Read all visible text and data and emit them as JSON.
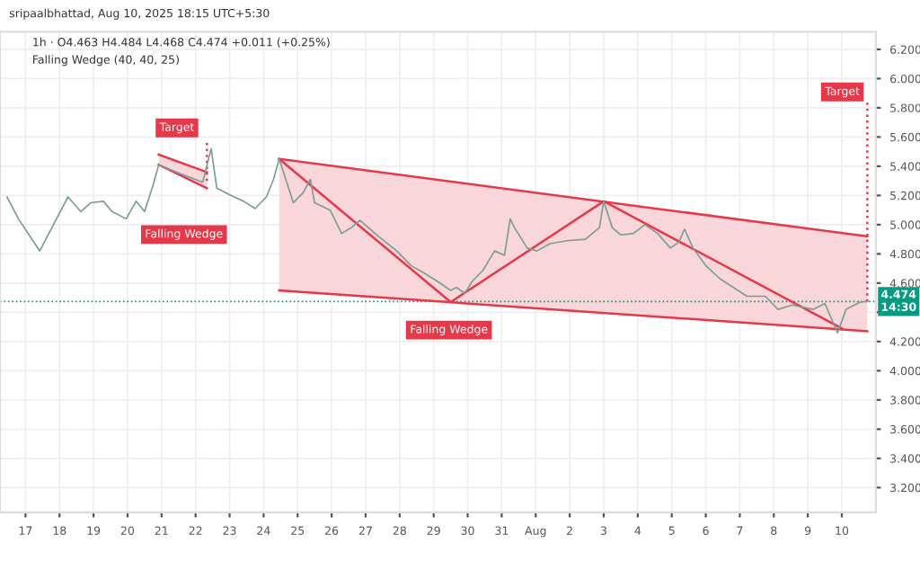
{
  "chart_data": {
    "type": "line",
    "title": "1h · O4.463 H4.484 L4.468 C4.474 +0.011 (+0.25%)",
    "subtitle": "Falling Wedge (40, 40, 25)",
    "annotations": [
      "sripaalbhattad, Aug 10, 2025 18:15 UTC+5:30",
      {
        "text": "Target",
        "x": "2025-07-22T08:00",
        "y": 5.56
      },
      "Falling Wedge",
      "Falling Wedge",
      {
        "text": "Target",
        "x": "2025-08-10T18:00",
        "y": 5.84
      }
    ],
    "xlim": [
      "2025-07-16T06:00",
      "2025-08-11T00:00"
    ],
    "xticks": [
      {
        "value": "2025-07-17",
        "label": "17"
      },
      {
        "value": "2025-07-18",
        "label": "18"
      },
      {
        "value": "2025-07-19",
        "label": "19"
      },
      {
        "value": "2025-07-20",
        "label": "20"
      },
      {
        "value": "2025-07-21",
        "label": "21"
      },
      {
        "value": "2025-07-22",
        "label": "22"
      },
      {
        "value": "2025-07-23",
        "label": "23"
      },
      {
        "value": "2025-07-24",
        "label": "24"
      },
      {
        "value": "2025-07-25",
        "label": "25"
      },
      {
        "value": "2025-07-26",
        "label": "26"
      },
      {
        "value": "2025-07-27",
        "label": "27"
      },
      {
        "value": "2025-07-28",
        "label": "28"
      },
      {
        "value": "2025-07-29",
        "label": "29"
      },
      {
        "value": "2025-07-30",
        "label": "30"
      },
      {
        "value": "2025-07-31",
        "label": "31"
      },
      {
        "value": "2025-08-01",
        "label": "Aug"
      },
      {
        "value": "2025-08-02",
        "label": "2"
      },
      {
        "value": "2025-08-03",
        "label": "3"
      },
      {
        "value": "2025-08-04",
        "label": "4"
      },
      {
        "value": "2025-08-05",
        "label": "5"
      },
      {
        "value": "2025-08-06",
        "label": "6"
      },
      {
        "value": "2025-08-07",
        "label": "7"
      },
      {
        "value": "2025-08-08",
        "label": "8"
      },
      {
        "value": "2025-08-09",
        "label": "9"
      },
      {
        "value": "2025-08-10",
        "label": "10"
      }
    ],
    "ylim": [
      3.03,
      6.32
    ],
    "yticks": [
      {
        "value": 3.2,
        "label": "3.200"
      },
      {
        "value": 3.4,
        "label": "3.400"
      },
      {
        "value": 3.6,
        "label": "3.600"
      },
      {
        "value": 3.8,
        "label": "3.800"
      },
      {
        "value": 4.0,
        "label": "4.000"
      },
      {
        "value": 4.2,
        "label": "4.200"
      },
      {
        "value": 4.4,
        "label": null
      },
      {
        "value": 4.6,
        "label": "4.600"
      },
      {
        "value": 4.8,
        "label": "4.800"
      },
      {
        "value": 5.0,
        "label": "5.000"
      },
      {
        "value": 5.2,
        "label": "5.200"
      },
      {
        "value": 5.4,
        "label": "5.400"
      },
      {
        "value": 5.6,
        "label": "5.600"
      },
      {
        "value": 5.8,
        "label": "5.800"
      },
      {
        "value": 6.0,
        "label": "6.000"
      },
      {
        "value": 6.2,
        "label": "6.200"
      }
    ],
    "grid": true,
    "legend": false,
    "ref_lines": [
      {
        "axis": "y",
        "value": 4.474,
        "label": "4.474\n14:30",
        "color": "#089981",
        "line_style": "dotted"
      }
    ],
    "series": [
      {
        "color": "#e5394a",
        "x": [
          "2025-07-24T11:00",
          "2025-08-10T18:00"
        ],
        "values": [
          5.45,
          4.92
        ],
        "lower": [
          4.55,
          4.27
        ],
        "upper": [
          5.45,
          4.92
        ]
      },
      {
        "color": "#e5394a",
        "x": [
          "2025-07-24T11:00",
          "2025-08-10T18:00"
        ],
        "values": [
          4.55,
          4.27
        ]
      },
      {
        "color": "#e5394a",
        "x": [
          "2025-07-24T11:00",
          "2025-07-29T12:00",
          "2025-08-03T00:00",
          "2025-08-10T00:00"
        ],
        "values": [
          5.45,
          4.47,
          5.16,
          4.29
        ]
      },
      {
        "color": "#e5394a",
        "x": [
          "2025-07-20T22:00",
          "2025-07-22T08:00"
        ],
        "values": [
          5.48,
          5.36
        ],
        "lower": [
          5.41,
          5.25
        ],
        "upper": [
          5.48,
          5.36
        ]
      },
      {
        "color": "#e5394a",
        "x": [
          "2025-07-20T22:00",
          "2025-07-22T08:00"
        ],
        "values": [
          5.41,
          5.25
        ]
      },
      {
        "color": "#e5394a",
        "line_style": "dotted",
        "x": [
          "2025-07-22T08:00",
          "2025-07-22T08:00"
        ],
        "values": [
          5.3,
          5.56
        ]
      },
      {
        "color": "#e5394a",
        "line_style": "dotted",
        "x": [
          "2025-08-10T18:00",
          "2025-08-10T18:00"
        ],
        "values": [
          4.474,
          5.84
        ]
      },
      {
        "color": "#7d9c96",
        "x": [
          "2025-07-16T11:00",
          "2025-07-16T19:00",
          "2025-07-17T08:00",
          "2025-07-17T10:00",
          "2025-07-18T06:00",
          "2025-07-18T15:00",
          "2025-07-18T22:00",
          "2025-07-19T07:00",
          "2025-07-19T13:00",
          "2025-07-19T23:00",
          "2025-07-20T06:00",
          "2025-07-20T12:00",
          "2025-07-20T18:00",
          "2025-07-20T22:00",
          "2025-07-21T13:00",
          "2025-07-22T05:00",
          "2025-07-22T11:00",
          "2025-07-22T15:00",
          "2025-07-23T03:00",
          "2025-07-23T10:00",
          "2025-07-23T18:00",
          "2025-07-24T02:00",
          "2025-07-24T07:00",
          "2025-07-24T11:00",
          "2025-07-24T17:00",
          "2025-07-24T21:00",
          "2025-07-25T04:00",
          "2025-07-25T09:00",
          "2025-07-25T12:00",
          "2025-07-25T23:00",
          "2025-07-26T07:00",
          "2025-07-26T14:00",
          "2025-07-26T20:00",
          "2025-07-27T09:00",
          "2025-07-27T22:00",
          "2025-07-28T08:00",
          "2025-07-28T17:00",
          "2025-07-29T03:00",
          "2025-07-29T12:00",
          "2025-07-29T16:00",
          "2025-07-29T22:00",
          "2025-07-30T03:00",
          "2025-07-30T11:00",
          "2025-07-30T19:00",
          "2025-07-31T02:00",
          "2025-07-31T06:00",
          "2025-07-31T09:00",
          "2025-07-31T18:00",
          "2025-08-01T01:00",
          "2025-08-01T10:00",
          "2025-08-01T22:00",
          "2025-08-02T11:00",
          "2025-08-02T21:00",
          "2025-08-03T00:00",
          "2025-08-03T06:00",
          "2025-08-03T12:00",
          "2025-08-03T21:00",
          "2025-08-04T05:00",
          "2025-08-04T14:00",
          "2025-08-04T23:00",
          "2025-08-05T05:00",
          "2025-08-05T09:00",
          "2025-08-05T15:00",
          "2025-08-06T00:00",
          "2025-08-06T10:00",
          "2025-08-07T05:00",
          "2025-08-07T18:00",
          "2025-08-08T03:00",
          "2025-08-08T13:00",
          "2025-08-09T04:00",
          "2025-08-09T12:00",
          "2025-08-09T21:00",
          "2025-08-10T03:00",
          "2025-08-10T13:00",
          "2025-08-10T18:00"
        ],
        "values": [
          5.19,
          5.04,
          4.85,
          4.82,
          5.19,
          5.09,
          5.15,
          5.16,
          5.09,
          5.04,
          5.16,
          5.09,
          5.27,
          5.41,
          5.35,
          5.29,
          5.52,
          5.25,
          5.19,
          5.16,
          5.11,
          5.19,
          5.31,
          5.45,
          5.27,
          5.15,
          5.22,
          5.31,
          5.15,
          5.1,
          4.94,
          4.98,
          5.03,
          4.92,
          4.82,
          4.72,
          4.67,
          4.61,
          4.55,
          4.57,
          4.53,
          4.61,
          4.69,
          4.82,
          4.79,
          5.04,
          4.98,
          4.84,
          4.82,
          4.87,
          4.89,
          4.9,
          4.98,
          5.16,
          4.98,
          4.93,
          4.94,
          5.0,
          4.94,
          4.84,
          4.88,
          4.97,
          4.84,
          4.72,
          4.63,
          4.51,
          4.51,
          4.42,
          4.45,
          4.42,
          4.46,
          4.26,
          4.42,
          4.47,
          4.474
        ]
      }
    ]
  }
}
